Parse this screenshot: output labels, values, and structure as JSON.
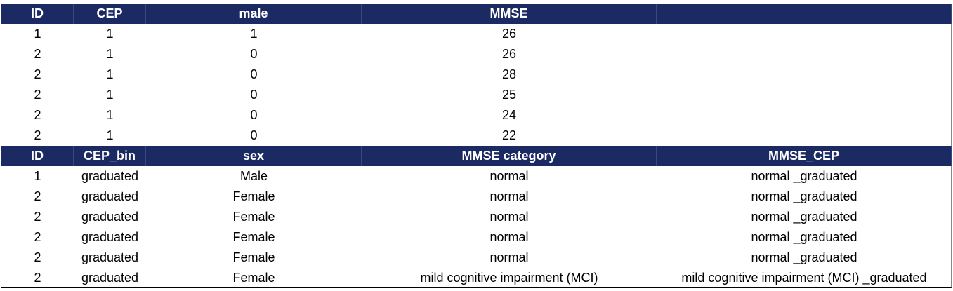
{
  "table1": {
    "header": [
      "ID",
      "CEP",
      "male",
      "MMSE"
    ],
    "rows": [
      [
        1,
        1,
        1,
        26
      ],
      [
        2,
        1,
        0,
        26
      ],
      [
        2,
        1,
        0,
        28
      ],
      [
        2,
        1,
        0,
        25
      ],
      [
        2,
        1,
        0,
        24
      ],
      [
        2,
        1,
        0,
        22
      ]
    ]
  },
  "table2": {
    "header": [
      "ID",
      "CEP_bin",
      "sex",
      "MMSE category",
      "MMSE_CEP"
    ],
    "rows": [
      [
        2,
        "graduated",
        "Female",
        "normal",
        "normal _graduated"
      ],
      [
        2,
        "graduated",
        "Female",
        "normal",
        "normal _graduated"
      ],
      [
        2,
        "graduated",
        "Female",
        "normal",
        "normal _graduated"
      ],
      [
        2,
        "graduated",
        "Female",
        "normal",
        "normal _graduated"
      ],
      [
        2,
        "graduated",
        "Female",
        "mild cognitive impairment (MCI)",
        "mild cognitive impairment (MCI) _graduated"
      ]
    ],
    "first_row": [
      1,
      "graduated",
      "Male",
      "normal",
      "normal _graduated"
    ]
  }
}
